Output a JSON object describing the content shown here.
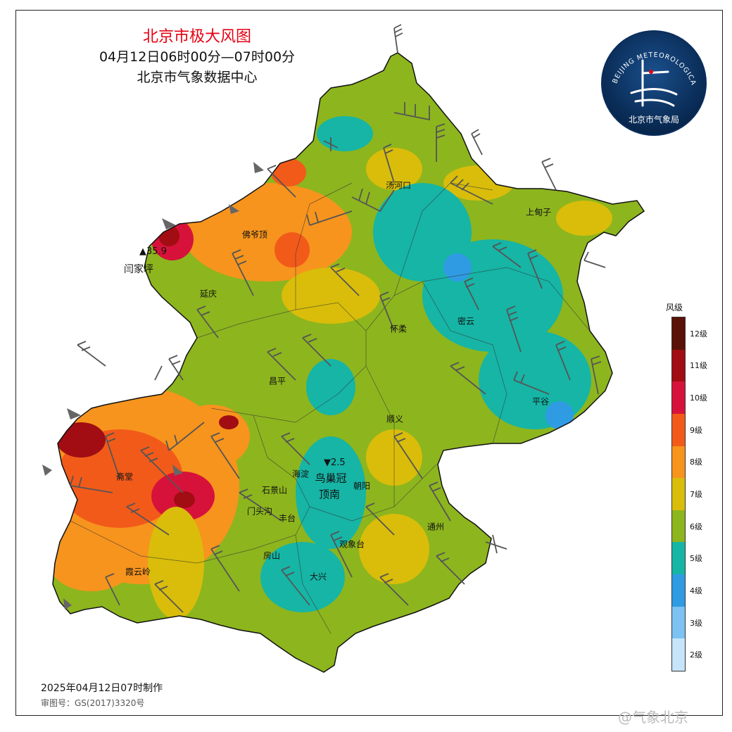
{
  "title": {
    "line1": "北京市极大风图",
    "line2": "04月12日06时00分—07时00分",
    "line3": "北京市气象数据中心"
  },
  "logo": {
    "ring_text": "BEIJING METEOROLOGICAL SERVICE",
    "org_text": "北京市气象局"
  },
  "legend": {
    "title": "风级",
    "levels": [
      {
        "label": "12级",
        "color": "#5a1208"
      },
      {
        "label": "11级",
        "color": "#a10d12"
      },
      {
        "label": "10级",
        "color": "#d7123a"
      },
      {
        "label": "9级",
        "color": "#f25a1a"
      },
      {
        "label": "8级",
        "color": "#f7941d"
      },
      {
        "label": "7级",
        "color": "#d9bd0a"
      },
      {
        "label": "6级",
        "color": "#8db51e"
      },
      {
        "label": "5级",
        "color": "#16b5a6"
      },
      {
        "label": "4级",
        "color": "#2f9be3"
      },
      {
        "label": "3级",
        "color": "#7cc2f2"
      },
      {
        "label": "2级",
        "color": "#c6e5fb"
      }
    ]
  },
  "places": [
    {
      "name": "汤河口"
    },
    {
      "name": "上甸子"
    },
    {
      "name": "佛爷顶"
    },
    {
      "name": "延庆"
    },
    {
      "name": "怀柔"
    },
    {
      "name": "密云"
    },
    {
      "name": "昌平"
    },
    {
      "name": "平谷"
    },
    {
      "name": "顺义"
    },
    {
      "name": "斋堂"
    },
    {
      "name": "海淀"
    },
    {
      "name": "朝阳"
    },
    {
      "name": "石景山"
    },
    {
      "name": "门头沟"
    },
    {
      "name": "丰台"
    },
    {
      "name": "通州"
    },
    {
      "name": "观象台"
    },
    {
      "name": "房山"
    },
    {
      "name": "大兴"
    },
    {
      "name": "霞云岭"
    }
  ],
  "big_places": [
    {
      "name": "鸟巢冠"
    },
    {
      "name": "顶南"
    }
  ],
  "extremes": {
    "max": {
      "symbol": "▲",
      "value": "35.9",
      "station": "闫家坪"
    },
    "min": {
      "symbol": "▼",
      "value": "2.5"
    }
  },
  "footer": {
    "made": "2025年04月12日07时制作",
    "review": "审图号：GS(2017)3320号",
    "watermark": "@气象北京"
  }
}
